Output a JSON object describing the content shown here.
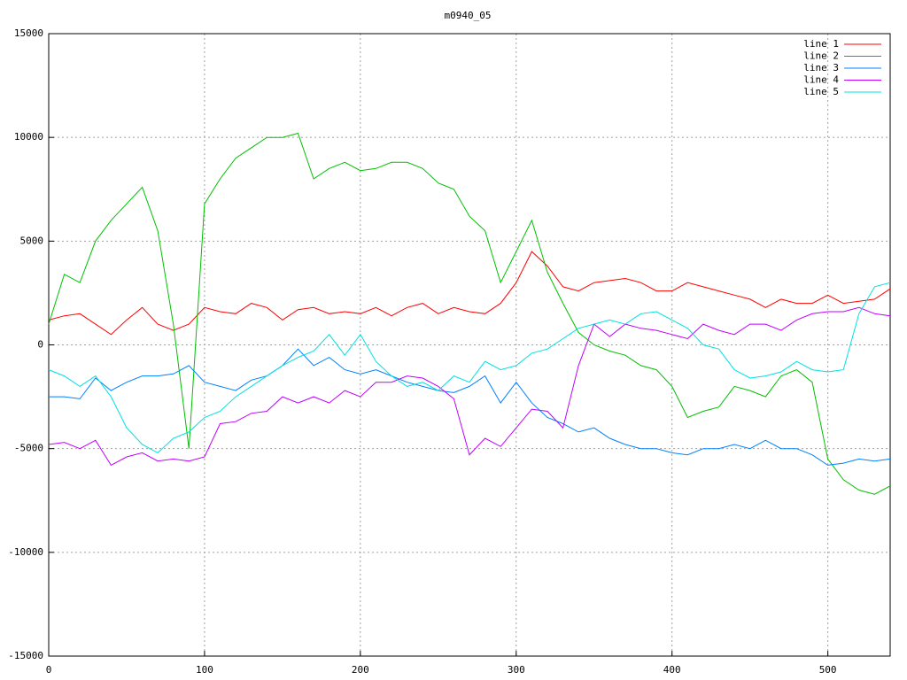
{
  "chart_data": {
    "type": "line",
    "title": "m0940_05",
    "x": [
      0,
      10,
      20,
      30,
      40,
      50,
      60,
      70,
      80,
      90,
      100,
      110,
      120,
      130,
      140,
      150,
      160,
      170,
      180,
      190,
      200,
      210,
      220,
      230,
      240,
      250,
      260,
      270,
      280,
      290,
      300,
      310,
      320,
      330,
      340,
      350,
      360,
      370,
      380,
      390,
      400,
      410,
      420,
      430,
      440,
      450,
      460,
      470,
      480,
      490,
      500,
      510,
      520,
      530,
      540
    ],
    "series": [
      {
        "name": "line 1",
        "color": "#ff0000",
        "values": [
          1200,
          1400,
          1500,
          1000,
          500,
          1200,
          1800,
          1000,
          700,
          1000,
          1800,
          1600,
          1500,
          2000,
          1800,
          1200,
          1700,
          1800,
          1500,
          1600,
          1500,
          1800,
          1400,
          1800,
          2000,
          1500,
          1800,
          1600,
          1500,
          2000,
          3000,
          4500,
          3800,
          2800,
          2600,
          3000,
          3100,
          3200,
          3000,
          2600,
          2600,
          3000,
          2800,
          2600,
          2400,
          2200,
          1800,
          2200,
          2000,
          2000,
          2400,
          2000,
          2100,
          2200,
          2700
        ]
      },
      {
        "name": "line 2",
        "color": "#00c000",
        "values": [
          1000,
          3400,
          3000,
          5000,
          6000,
          6800,
          7600,
          5500,
          1000,
          -5000,
          6800,
          8000,
          9000,
          9500,
          10000,
          10000,
          10200,
          8000,
          8500,
          8800,
          8400,
          8500,
          8800,
          8800,
          8500,
          7800,
          7500,
          6200,
          5500,
          3000,
          4500,
          6000,
          3500,
          2000,
          600,
          0,
          -300,
          -500,
          -1000,
          -1200,
          -2000,
          -3500,
          -3200,
          -3000,
          -2000,
          -2200,
          -2500,
          -1500,
          -1200,
          -1800,
          -5500,
          -6500,
          -7000,
          -7200,
          -6800
        ]
      },
      {
        "name": "line 3",
        "color": "#0080ff",
        "values": [
          -2500,
          -2500,
          -2600,
          -1600,
          -2200,
          -1800,
          -1500,
          -1500,
          -1400,
          -1000,
          -1800,
          -2000,
          -2200,
          -1700,
          -1500,
          -1000,
          -200,
          -1000,
          -600,
          -1200,
          -1400,
          -1200,
          -1500,
          -1800,
          -2000,
          -2200,
          -2300,
          -2000,
          -1500,
          -2800,
          -1800,
          -2800,
          -3500,
          -3800,
          -4200,
          -4000,
          -4500,
          -4800,
          -5000,
          -5000,
          -5200,
          -5300,
          -5000,
          -5000,
          -4800,
          -5000,
          -4600,
          -5000,
          -5000,
          -5300,
          -5800,
          -5700,
          -5500,
          -5600,
          -5500
        ]
      },
      {
        "name": "line 4",
        "color": "#c000ff",
        "values": [
          -4800,
          -4700,
          -5000,
          -4600,
          -5800,
          -5400,
          -5200,
          -5600,
          -5500,
          -5600,
          -5400,
          -3800,
          -3700,
          -3300,
          -3200,
          -2500,
          -2800,
          -2500,
          -2800,
          -2200,
          -2500,
          -1800,
          -1800,
          -1500,
          -1600,
          -2000,
          -2600,
          -5300,
          -4500,
          -4900,
          -4000,
          -3100,
          -3200,
          -4000,
          -1000,
          1000,
          400,
          1000,
          800,
          700,
          500,
          300,
          1000,
          700,
          500,
          1000,
          1000,
          700,
          1200,
          1500,
          1600,
          1600,
          1800,
          1500,
          1400
        ]
      },
      {
        "name": "line 5",
        "color": "#00e0e0",
        "values": [
          -1200,
          -1500,
          -2000,
          -1500,
          -2500,
          -4000,
          -4800,
          -5200,
          -4500,
          -4200,
          -3500,
          -3200,
          -2500,
          -2000,
          -1500,
          -1000,
          -600,
          -300,
          500,
          -500,
          500,
          -800,
          -1500,
          -2000,
          -1800,
          -2200,
          -1500,
          -1800,
          -800,
          -1200,
          -1000,
          -400,
          -200,
          300,
          800,
          1000,
          1200,
          1000,
          1500,
          1600,
          1200,
          800,
          0,
          -200,
          -1200,
          -1600,
          -1500,
          -1300,
          -800,
          -1200,
          -1300,
          -1200,
          1500,
          2800,
          3000
        ]
      }
    ],
    "xlim": [
      0,
      540
    ],
    "xticks": [
      0,
      100,
      200,
      300,
      400,
      500
    ],
    "ylim": [
      -15000,
      15000
    ],
    "yticks": [
      -15000,
      -10000,
      -5000,
      0,
      5000,
      10000,
      15000
    ],
    "grid": true,
    "legend": "top-right"
  }
}
